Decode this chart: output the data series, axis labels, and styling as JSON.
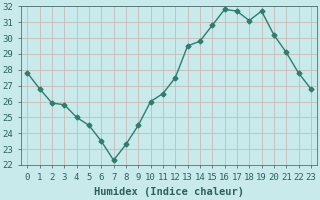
{
  "x": [
    0,
    1,
    2,
    3,
    4,
    5,
    6,
    7,
    8,
    9,
    10,
    11,
    12,
    13,
    14,
    15,
    16,
    17,
    18,
    19,
    20,
    21,
    22,
    23
  ],
  "y": [
    27.8,
    26.8,
    25.9,
    25.8,
    25.0,
    24.5,
    23.5,
    22.3,
    23.3,
    24.5,
    26.0,
    26.5,
    27.5,
    29.5,
    29.8,
    30.8,
    31.8,
    31.7,
    31.1,
    31.7,
    30.2,
    29.1,
    27.8,
    26.8
  ],
  "line_color": "#2e7d6e",
  "marker": "D",
  "marker_size": 2.5,
  "bg_color": "#c8eaea",
  "grid_color": "#b0c8c8",
  "xlabel": "Humidex (Indice chaleur)",
  "ylim": [
    22,
    32
  ],
  "xlim": [
    -0.5,
    23.5
  ],
  "yticks": [
    22,
    23,
    24,
    25,
    26,
    27,
    28,
    29,
    30,
    31,
    32
  ],
  "xticks": [
    0,
    1,
    2,
    3,
    4,
    5,
    6,
    7,
    8,
    9,
    10,
    11,
    12,
    13,
    14,
    15,
    16,
    17,
    18,
    19,
    20,
    21,
    22,
    23
  ],
  "xlabel_fontsize": 7.5,
  "tick_fontsize": 6.5
}
